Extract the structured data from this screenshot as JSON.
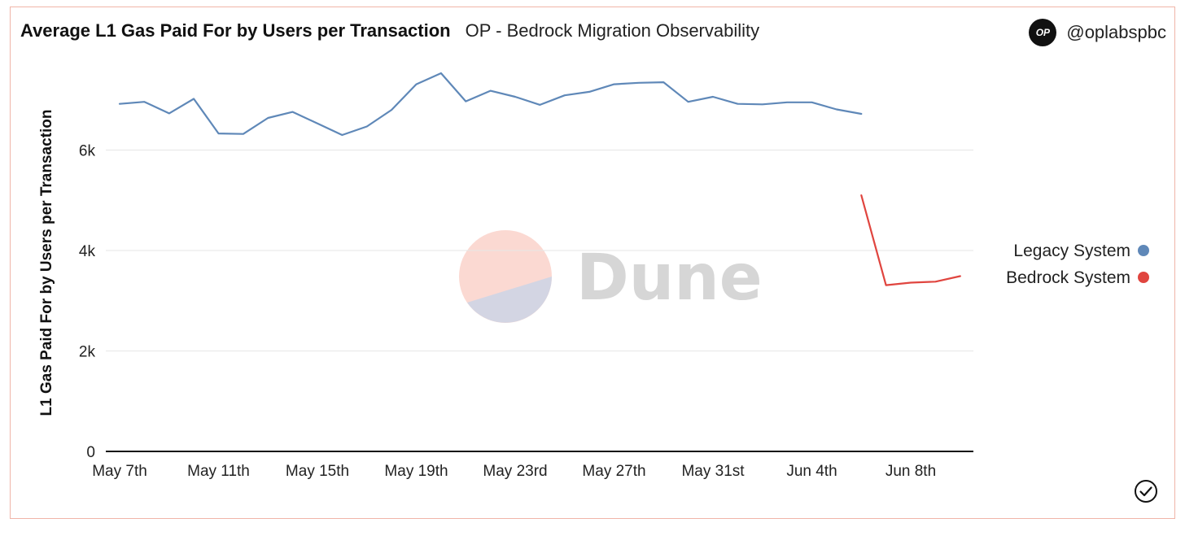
{
  "header": {
    "title": "Average L1 Gas Paid For by Users per Transaction",
    "subtitle": "OP - Bedrock Migration Observability"
  },
  "brand": {
    "logo_text": "OP",
    "handle": "@oplabspbc"
  },
  "watermark": {
    "text": "Dune"
  },
  "icons": {
    "check": "check-circle-icon",
    "logo": "op-logo-icon"
  },
  "colors": {
    "legacy": "#5f88b8",
    "bedrock": "#e0453f",
    "card_border": "#f0b5a8",
    "grid": "#e6e6e6",
    "axis": "#111111"
  },
  "chart_data": {
    "type": "line",
    "title": "Average L1 Gas Paid For by Users per Transaction",
    "xlabel": "",
    "ylabel": "L1 Gas Paid For by Users per Transaction",
    "ylim": [
      0,
      7700
    ],
    "yticks": [
      0,
      2000,
      4000,
      6000
    ],
    "ytick_labels": [
      "0",
      "2k",
      "4k",
      "6k"
    ],
    "x_start": "May 7th",
    "xticks": [
      {
        "day": 0,
        "label": "May 7th"
      },
      {
        "day": 4,
        "label": "May 11th"
      },
      {
        "day": 8,
        "label": "May 15th"
      },
      {
        "day": 12,
        "label": "May 19th"
      },
      {
        "day": 16,
        "label": "May 23rd"
      },
      {
        "day": 20,
        "label": "May 27th"
      },
      {
        "day": 24,
        "label": "May 31st"
      },
      {
        "day": 28,
        "label": "Jun 4th"
      },
      {
        "day": 32,
        "label": "Jun 8th"
      }
    ],
    "grid": true,
    "legend_position": "right",
    "series": [
      {
        "name": "Legacy System",
        "color": "#5f88b8",
        "x": [
          0,
          1,
          2,
          3,
          4,
          5,
          6,
          7,
          8,
          9,
          10,
          11,
          12,
          13,
          14,
          15,
          16,
          17,
          18,
          19,
          20,
          21,
          22,
          23,
          24,
          25,
          26,
          27,
          28,
          29,
          30
        ],
        "values": [
          6920,
          6960,
          6730,
          7020,
          6330,
          6320,
          6640,
          6760,
          6530,
          6300,
          6470,
          6800,
          7310,
          7530,
          6970,
          7180,
          7060,
          6900,
          7090,
          7160,
          7310,
          7340,
          7350,
          6960,
          7060,
          6920,
          6910,
          6950,
          6950,
          6810,
          6720
        ]
      },
      {
        "name": "Bedrock System",
        "color": "#e0453f",
        "x": [
          30,
          31,
          32,
          33,
          34
        ],
        "values": [
          5100,
          3310,
          3360,
          3380,
          3490
        ]
      }
    ]
  }
}
